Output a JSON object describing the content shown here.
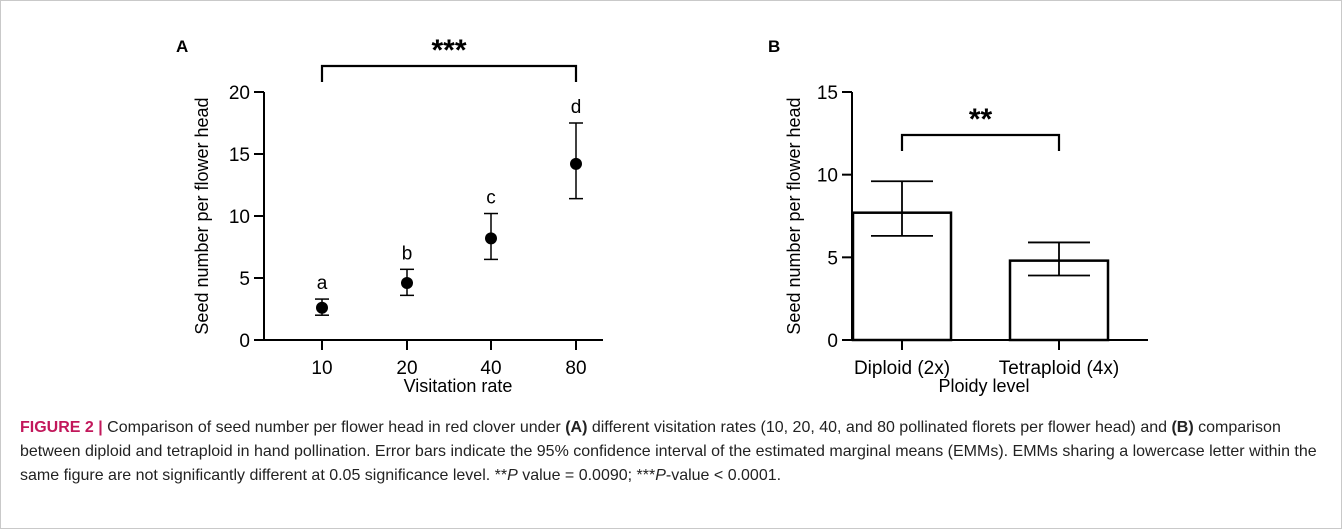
{
  "chart_data": [
    {
      "panel": "A",
      "type": "scatter",
      "xlabel": "Visitation rate",
      "ylabel": "Seed number per flower head",
      "categories": [
        "10",
        "20",
        "40",
        "80"
      ],
      "values": [
        2.6,
        4.6,
        8.2,
        14.2
      ],
      "ci_low": [
        2.0,
        3.6,
        6.5,
        11.4
      ],
      "ci_high": [
        3.3,
        5.7,
        10.2,
        17.5
      ],
      "letters": [
        "a",
        "b",
        "c",
        "d"
      ],
      "ylim": [
        0,
        20
      ],
      "yticks": [
        "0",
        "5",
        "10",
        "15",
        "20"
      ],
      "significance": "***",
      "grid": false
    },
    {
      "panel": "B",
      "type": "bar",
      "xlabel": "Ploidy level",
      "ylabel": "Seed number per flower head",
      "categories": [
        "Diploid (2x)",
        "Tetraploid (4x)"
      ],
      "values": [
        7.7,
        4.8
      ],
      "ci_low": [
        6.3,
        3.9
      ],
      "ci_high": [
        9.6,
        5.9
      ],
      "ylim": [
        0,
        15
      ],
      "yticks": [
        "0",
        "5",
        "10",
        "15"
      ],
      "significance": "**",
      "grid": false
    }
  ],
  "caption": {
    "lead": "FIGURE 2 |",
    "t1": " Comparison of seed number per flower head in red clover under ",
    "b1": "(A)",
    "t2": " different visitation rates (10, 20, 40, and 80 pollinated florets per flower head) and ",
    "b2": "(B)",
    "t3": " comparison between diploid and tetraploid in hand pollination. Error bars indicate the 95% confidence interval of the estimated marginal means (EMMs). EMMs sharing a lowercase letter within the same figure are not significantly different at 0.05 significance level. **",
    "p1": "P",
    "t4": " value = 0.0090; ***",
    "p2": "P",
    "t5": "-value < 0.0001."
  }
}
